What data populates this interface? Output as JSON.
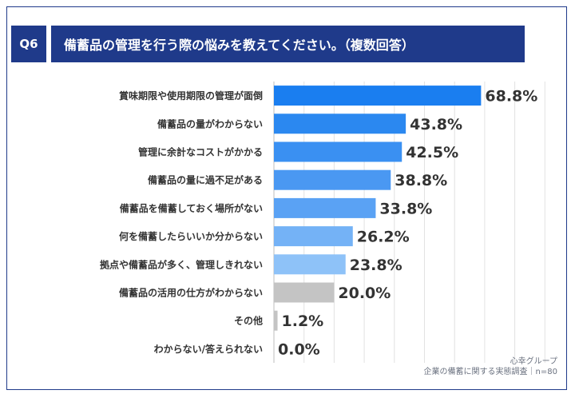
{
  "header": {
    "badge": "Q6",
    "title": "備蓄品の管理を行う際の悩みを教えてください。（複数回答）"
  },
  "footer": {
    "source": "心幸グループ",
    "survey": "企業の備蓄に関する実態調査｜n=80"
  },
  "chart_data": {
    "type": "bar",
    "orientation": "horizontal",
    "title": "",
    "xlabel": "",
    "ylabel": "",
    "xlim": [
      0,
      100
    ],
    "grid": true,
    "categories": [
      "賞味期限や使用期限の管理が面倒",
      "備蓄品の量がわからない",
      "管理に余計なコストがかかる",
      "備蓄品の量に過不足がある",
      "備蓄品を備蓄しておく場所がない",
      "何を備蓄したらいいか分からない",
      "拠点や備蓄品が多く、管理しきれない",
      "備蓄品の活用の仕方がわからない",
      "その他",
      "わからない/答えられない"
    ],
    "values": [
      68.8,
      43.8,
      42.5,
      38.8,
      33.8,
      26.2,
      23.8,
      20.0,
      1.2,
      0.0
    ],
    "value_labels": [
      "68.8%",
      "43.8%",
      "42.5%",
      "38.8%",
      "33.8%",
      "26.2%",
      "23.8%",
      "20.0%",
      "1.2%",
      "0.0%"
    ],
    "colors": [
      "#1a7ef0",
      "#2b88f0",
      "#3a90f2",
      "#4a98f2",
      "#5aa2f4",
      "#74b2f6",
      "#8ec2f8",
      "#c4c4c4",
      "#c4c4c4",
      "#c4c4c4"
    ]
  }
}
